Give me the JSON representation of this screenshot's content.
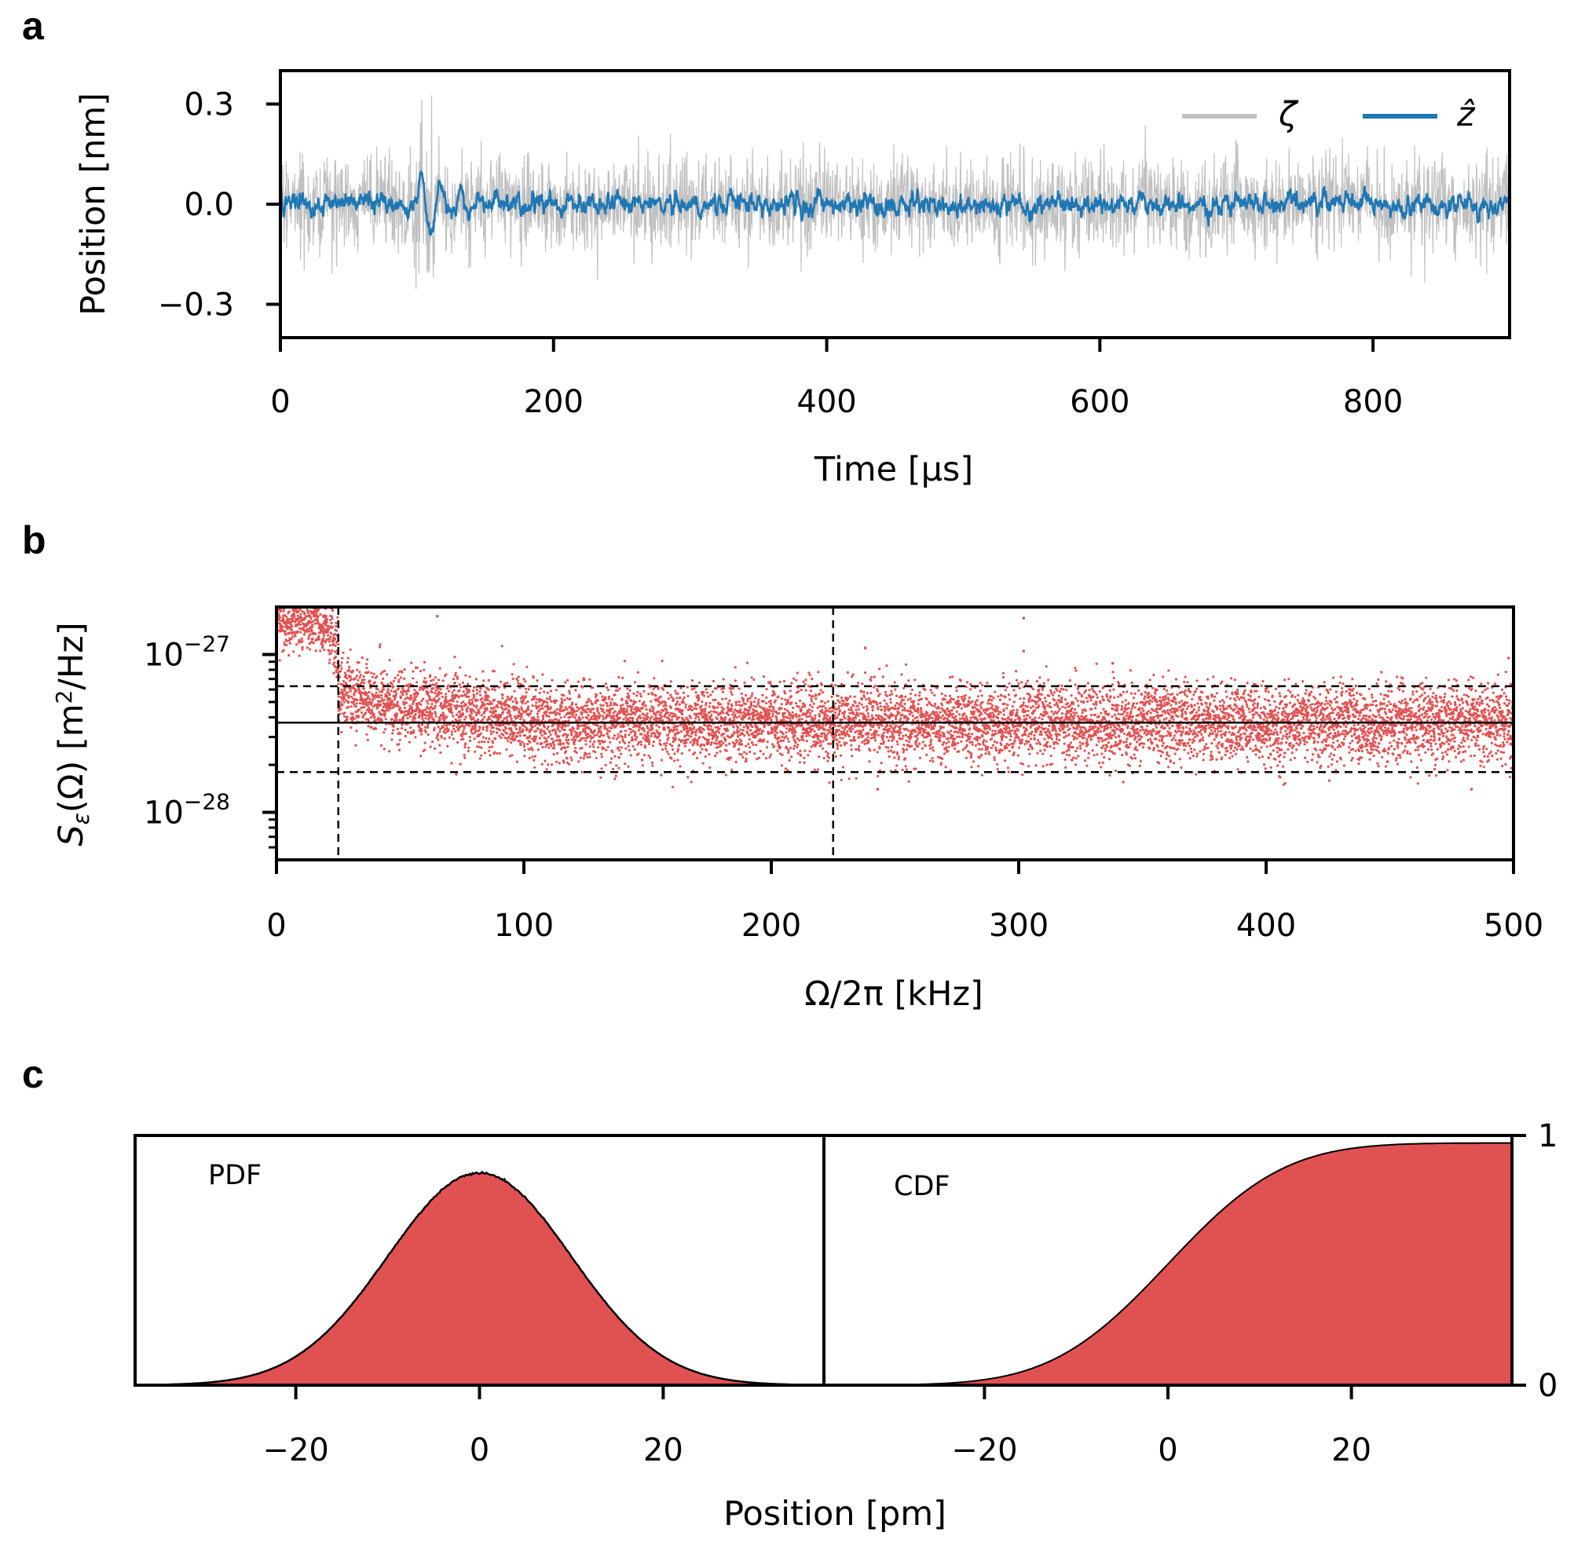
{
  "colors": {
    "gray": "#c0c0c0",
    "blue": "#1f77b4",
    "red": "#e05252",
    "black": "#000000"
  },
  "chart_data": [
    {
      "panel": "a",
      "type": "line",
      "xlabel": "Time [μs]",
      "ylabel": "Position [nm]",
      "xlim": [
        0,
        900
      ],
      "ylim": [
        -0.4,
        0.4
      ],
      "xticks": [
        0,
        200,
        400,
        600,
        800
      ],
      "xtick_labels": [
        "0",
        "200",
        "400",
        "600",
        "800"
      ],
      "yticks": [
        0.3,
        0.0,
        -0.3
      ],
      "ytick_labels": [
        "0.3",
        "0.0",
        "−0.3"
      ],
      "legend": {
        "position": "top-right",
        "entries": [
          "ζ",
          "ẑ"
        ]
      },
      "series": [
        {
          "name": "ζ",
          "color": "#c0c0c0",
          "description": "noisy measurement record",
          "noise_std": 0.07,
          "t_range": [
            0,
            900
          ]
        },
        {
          "name": "ẑ",
          "color": "#1f77b4",
          "description": "filtered estimate",
          "noise_std": 0.02,
          "kick_time": 100,
          "kick_amplitude": 0.1,
          "t_range": [
            0,
            900
          ]
        }
      ]
    },
    {
      "panel": "b",
      "type": "scatter",
      "xlabel": "Ω/2π [kHz]",
      "ylabel": "Sε(Ω) [m²/Hz]",
      "ylabel_parts": {
        "sym": "S",
        "sub": "ε",
        "rest": "(Ω) [m",
        "sup": "2",
        "tail": "/Hz]"
      },
      "xlim": [
        0,
        500
      ],
      "ylim": [
        5e-29,
        2e-27
      ],
      "yscale": "log",
      "xticks": [
        0,
        100,
        200,
        300,
        400,
        500
      ],
      "xtick_labels": [
        "0",
        "100",
        "200",
        "300",
        "400",
        "500"
      ],
      "ytick_major": [
        {
          "value": 1e-27,
          "base": "10",
          "exp": "−27"
        },
        {
          "value": 1e-28,
          "base": "10",
          "exp": "−28"
        }
      ],
      "hlines": [
        {
          "y": 3.7e-28,
          "style": "solid"
        },
        {
          "y": 6.3e-28,
          "style": "dashed"
        },
        {
          "y": 1.8e-28,
          "style": "dashed"
        }
      ],
      "vlines": [
        {
          "x": 25,
          "style": "dashed"
        },
        {
          "x": 225,
          "style": "dashed"
        }
      ],
      "scatter": {
        "color": "#e05252",
        "floor_level": 3.7e-28,
        "low_freq_excess": {
          "x_max": 25,
          "level": 1.6e-27
        },
        "shoulder": {
          "x_range": [
            25,
            100
          ],
          "level": 5e-28
        },
        "outliers": [
          [
            65,
            1.75e-27
          ],
          [
            238,
            1.1e-27
          ],
          [
            302,
            1.7e-27
          ],
          [
            302,
            1.05e-27
          ],
          [
            338,
            8.8e-28
          ],
          [
            243,
            1.4e-28
          ],
          [
            483,
            1.4e-28
          ],
          [
            498,
            9.5e-28
          ]
        ]
      }
    },
    {
      "panel": "c",
      "type": "area",
      "xlabel": "Position [pm]",
      "sigma": 10,
      "subplots": [
        {
          "name": "PDF",
          "xlim": [
            -37.5,
            37.5
          ],
          "xticks": [
            -20,
            0,
            20
          ],
          "xtick_labels": [
            "−20",
            "0",
            "20"
          ],
          "peak_fraction": 0.85
        },
        {
          "name": "CDF",
          "xlim": [
            -37.5,
            37.5
          ],
          "xticks": [
            -20,
            0,
            20
          ],
          "xtick_labels": [
            "−20",
            "0",
            "20"
          ],
          "yticks": [
            1,
            0
          ],
          "ytick_labels": [
            "1",
            "0"
          ],
          "ylim": [
            0,
            1
          ]
        }
      ]
    }
  ]
}
